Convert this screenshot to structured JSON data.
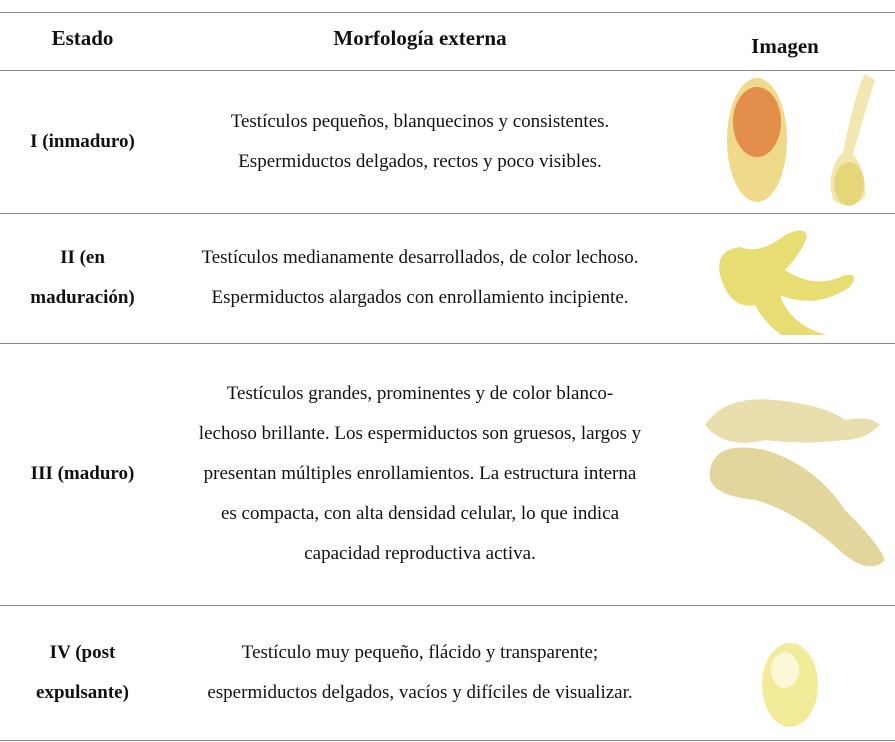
{
  "table": {
    "header": [
      "Estado",
      "Morfología externa",
      "Imagen"
    ],
    "rows": [
      {
        "estado": [
          "I (inmaduro)"
        ],
        "morfologia": [
          "Testículos pequeños, blanquecinos y consistentes.",
          "Espermiductos delgados, rectos y poco visibles."
        ]
      },
      {
        "estado": [
          "II (en",
          "maduración)"
        ],
        "morfologia": [
          "Testículos medianamente desarrollados, de color lechoso.",
          "Espermiductos alargados con enrollamiento incipiente."
        ]
      },
      {
        "estado": [
          "III (maduro)"
        ],
        "morfologia": [
          "Testículos grandes, prominentes y de color blanco-",
          "lechoso brillante. Los espermiductos son gruesos, largos y",
          "presentan múltiples enrollamientos. La estructura interna",
          "es compacta, con alta densidad celular, lo que indica",
          "capacidad reproductiva activa."
        ]
      },
      {
        "estado": [
          "IV (post",
          "expulsante)"
        ],
        "morfologia": [
          "Testículo muy pequeño, flácido y transparente;",
          "espermiductos delgados, vacíos y difíciles de visualizar."
        ]
      }
    ]
  }
}
